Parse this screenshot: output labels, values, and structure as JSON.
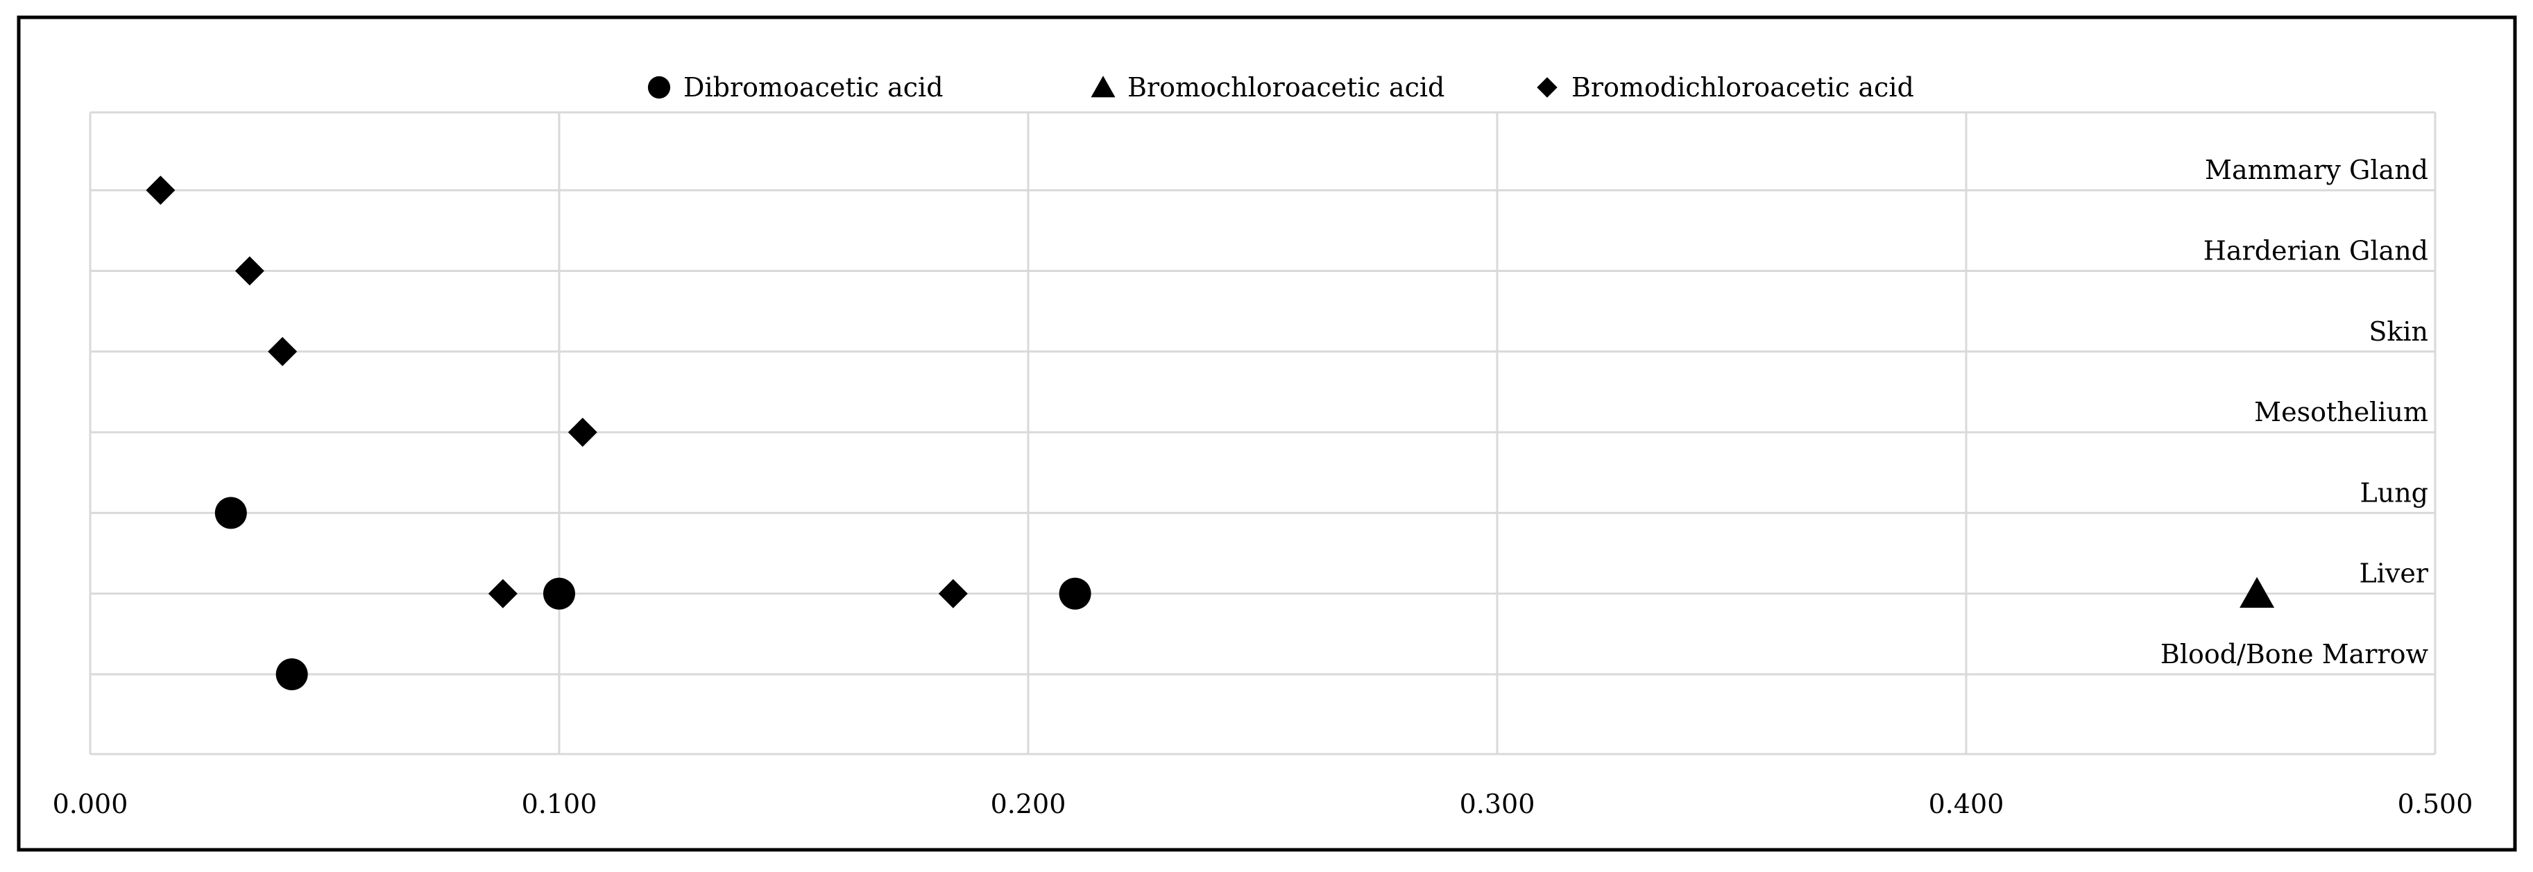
{
  "chart_data": {
    "type": "scatter",
    "title": "",
    "xlabel": "",
    "ylabel": "",
    "xlim": [
      0,
      0.5
    ],
    "x_ticks": [
      "0.000",
      "0.100",
      "0.200",
      "0.300",
      "0.400",
      "0.500"
    ],
    "categories": [
      "Blood/Bone Marrow",
      "Liver",
      "Lung",
      "Mesothelium",
      "Skin",
      "Harderian Gland",
      "Mammary Gland"
    ],
    "grid": true,
    "legend_position": "top",
    "series": [
      {
        "name": "Dibromoacetic acid",
        "marker": "circle",
        "points": [
          {
            "category": "Blood/Bone Marrow",
            "x": 0.043
          },
          {
            "category": "Liver",
            "x": 0.1
          },
          {
            "category": "Liver",
            "x": 0.21
          },
          {
            "category": "Lung",
            "x": 0.03
          }
        ]
      },
      {
        "name": "Bromochloroacetic acid",
        "marker": "triangle",
        "points": [
          {
            "category": "Liver",
            "x": 0.462
          }
        ]
      },
      {
        "name": "Bromodichloroacetic acid",
        "marker": "diamond",
        "points": [
          {
            "category": "Liver",
            "x": 0.088
          },
          {
            "category": "Liver",
            "x": 0.184
          },
          {
            "category": "Mesothelium",
            "x": 0.105
          },
          {
            "category": "Skin",
            "x": 0.041
          },
          {
            "category": "Harderian Gland",
            "x": 0.034
          },
          {
            "category": "Mammary Gland",
            "x": 0.015
          }
        ]
      }
    ],
    "colors": {
      "marker": "#000000",
      "grid": "#d9d9d9",
      "border": "#000000"
    }
  }
}
